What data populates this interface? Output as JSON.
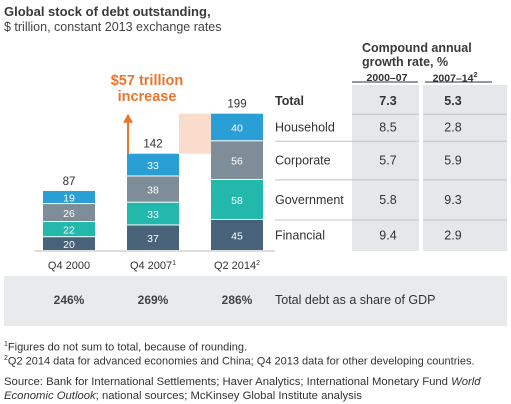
{
  "colors": {
    "household": "#2a9fd6",
    "corporate": "#7f8d99",
    "government": "#22b8ac",
    "financial": "#48627a",
    "callout": "#e8762d",
    "callout_fill": "#f9dccb",
    "band_fill": "#e8eaeb",
    "growth_fill": "#e6e7e8"
  },
  "header": {
    "title": "Global stock of debt outstanding,",
    "subtitle": "$ trillion, constant 2013 exchange rates",
    "growth_title": "Compound annual growth rate, %",
    "col1": "2000–07",
    "col2": "2007–14",
    "col2_note": "2"
  },
  "callout": {
    "line1": "$57 trillion",
    "line2": "increase"
  },
  "bottom_label": "Total debt as a share of GDP",
  "footnotes": {
    "note1_mark": "1",
    "note1": "Figures do not sum to total, because of rounding.",
    "note2_mark": "2",
    "note2": "Q2 2014 data for advanced economies and China; Q4 2013 data for other developing countries.",
    "source_prefix": "Source: Bank for International Settlements; Haver Analytics; International Monetary Fund ",
    "source_italic": "World Economic Outlook",
    "source_suffix": "; national sources; McKinsey Global Institute analysis"
  },
  "chart_data": {
    "type": "bar",
    "stacked": true,
    "categories": [
      "Q4 2000",
      "Q4 2007",
      "Q2 2014"
    ],
    "category_notes": [
      "",
      "1",
      "2"
    ],
    "totals": [
      87,
      142,
      199
    ],
    "series": [
      {
        "name": "Financial",
        "values": [
          20,
          37,
          45
        ],
        "color_key": "financial",
        "cagr_2000_07": "9.4",
        "cagr_2007_14": "2.9"
      },
      {
        "name": "Government",
        "values": [
          22,
          33,
          58
        ],
        "color_key": "government",
        "cagr_2000_07": "5.8",
        "cagr_2007_14": "9.3"
      },
      {
        "name": "Corporate",
        "values": [
          26,
          38,
          56
        ],
        "color_key": "corporate",
        "cagr_2000_07": "5.7",
        "cagr_2007_14": "5.9"
      },
      {
        "name": "Household",
        "values": [
          19,
          33,
          40
        ],
        "color_key": "household",
        "cagr_2000_07": "8.5",
        "cagr_2007_14": "2.8"
      }
    ],
    "total_row": {
      "name": "Total",
      "cagr_2000_07": "7.3",
      "cagr_2007_14": "5.3"
    },
    "debt_to_gdp": [
      "246%",
      "269%",
      "286%"
    ]
  }
}
